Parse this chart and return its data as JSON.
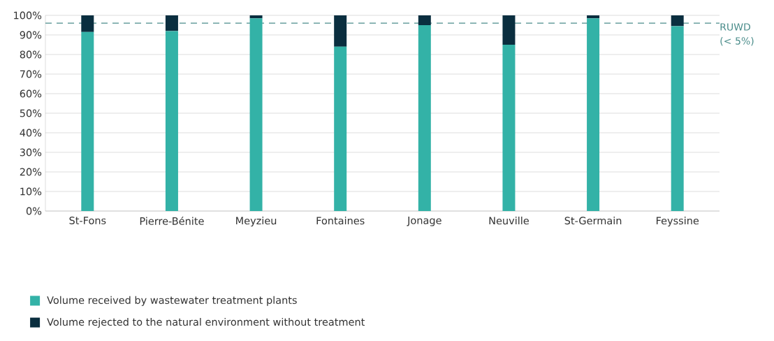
{
  "chart_data": {
    "type": "bar",
    "stacked": true,
    "categories": [
      "St-Fons",
      "Pierre-Bénite",
      "Meyzieu",
      "Fontaines",
      "Jonage",
      "Neuville",
      "St-Germain",
      "Feyssine"
    ],
    "series": [
      {
        "name": "Volume received by wastewater treatment plants",
        "color": "#33b2a7",
        "values": [
          91.5,
          92,
          98.5,
          84,
          95,
          85,
          98.5,
          94.5
        ]
      },
      {
        "name": "Volume rejected to the natural environment without treatment",
        "color": "#0a2e3f",
        "values": [
          8.5,
          8,
          1.5,
          16,
          5,
          15,
          1.5,
          5.5
        ]
      }
    ],
    "ylim": [
      0,
      100
    ],
    "yticks": [
      {
        "value": 0,
        "label": "0%"
      },
      {
        "value": 10,
        "label": "10%"
      },
      {
        "value": 20,
        "label": "20%"
      },
      {
        "value": 30,
        "label": "30%"
      },
      {
        "value": 40,
        "label": "40%"
      },
      {
        "value": 50,
        "label": "50%"
      },
      {
        "value": 60,
        "label": "60%"
      },
      {
        "value": 70,
        "label": "70%"
      },
      {
        "value": 80,
        "label": "80%"
      },
      {
        "value": 90,
        "label": "90%"
      },
      {
        "value": 100,
        "label": "100%"
      }
    ],
    "ref_lines": [
      {
        "axis": "y",
        "value": 96,
        "label": "RUWD (< 5%)",
        "color": "#4a8c8a",
        "line_style": "dashed"
      }
    ],
    "grid": "y",
    "legend": "bottom left"
  }
}
